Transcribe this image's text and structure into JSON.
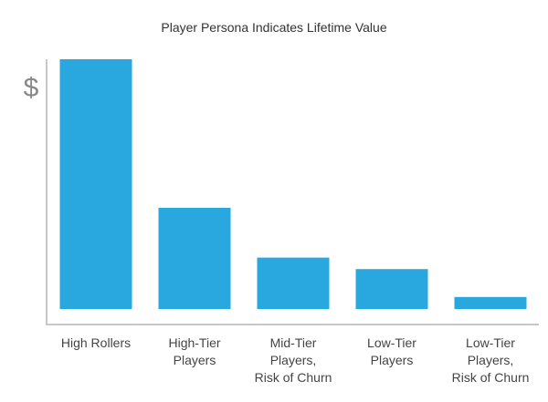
{
  "chart_data": {
    "type": "bar",
    "title": "Player Persona Indicates Lifetime Value",
    "xlabel": "",
    "ylabel": "$",
    "categories": [
      "High Rollers",
      "High-Tier Players",
      "Mid-Tier Players, Risk of Churn",
      "Low-Tier Players",
      "Low-Tier Players, Risk of Churn"
    ],
    "category_lines": [
      [
        "High Rollers"
      ],
      [
        "High-Tier",
        "Players"
      ],
      [
        "Mid-Tier",
        "Players,",
        "Risk of Churn"
      ],
      [
        "Low-Tier",
        "Players"
      ],
      [
        "Low-Tier",
        "Players,",
        "Risk of Churn"
      ]
    ],
    "values": [
      100,
      40.5,
      20.6,
      16,
      4.8
    ],
    "ylim": [
      0,
      100
    ],
    "grid": false,
    "bar_color": "#29a8e0",
    "axis_color": "#c8c8c8"
  }
}
